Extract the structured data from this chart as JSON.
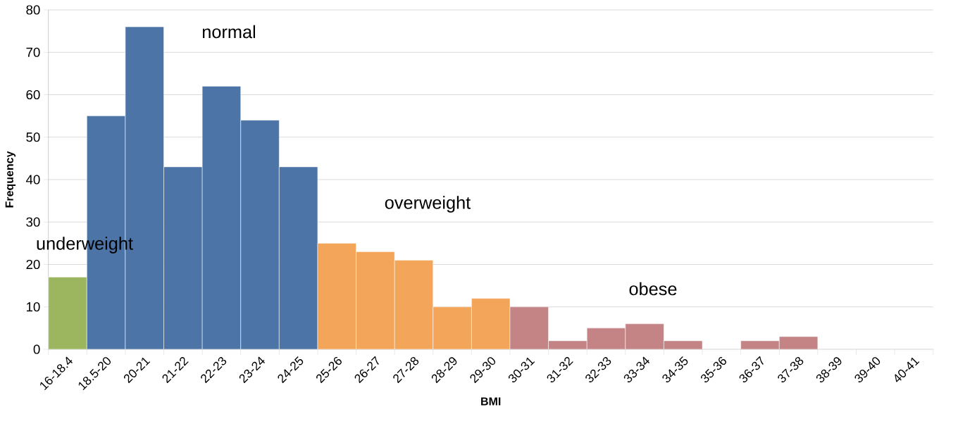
{
  "chart_data": {
    "type": "bar",
    "xlabel": "BMI",
    "ylabel": "Frequency",
    "categories": [
      "16-18.4",
      "18.5-20",
      "20-21",
      "21-22",
      "22-23",
      "23-24",
      "24-25",
      "25-26",
      "26-27",
      "27-28",
      "28-29",
      "29-30",
      "30-31",
      "31-32",
      "32-33",
      "33-34",
      "34-35",
      "35-36",
      "36-37",
      "37-38",
      "38-39",
      "39-40",
      "40-41"
    ],
    "values": [
      17,
      55,
      76,
      43,
      62,
      54,
      43,
      25,
      23,
      21,
      10,
      12,
      10,
      2,
      5,
      6,
      2,
      0,
      2,
      3,
      0,
      0,
      0
    ],
    "colors": [
      "#9cb660",
      "#4d74a6",
      "#4d74a6",
      "#4d74a6",
      "#4d74a6",
      "#4d74a6",
      "#4d74a6",
      "#f3a55a",
      "#f3a55a",
      "#f3a55a",
      "#f3a55a",
      "#f3a55a",
      "#c48486",
      "#c48486",
      "#c48486",
      "#c48486",
      "#c48486",
      "#c48486",
      "#c48486",
      "#c48486",
      "#c48486",
      "#c48486",
      "#c48486"
    ],
    "ylim": [
      0,
      80
    ],
    "yticks": [
      0,
      10,
      20,
      30,
      40,
      50,
      60,
      70,
      80
    ],
    "grid": "y",
    "annotations": [
      "underweight",
      "normal",
      "overweight",
      "obese"
    ]
  }
}
